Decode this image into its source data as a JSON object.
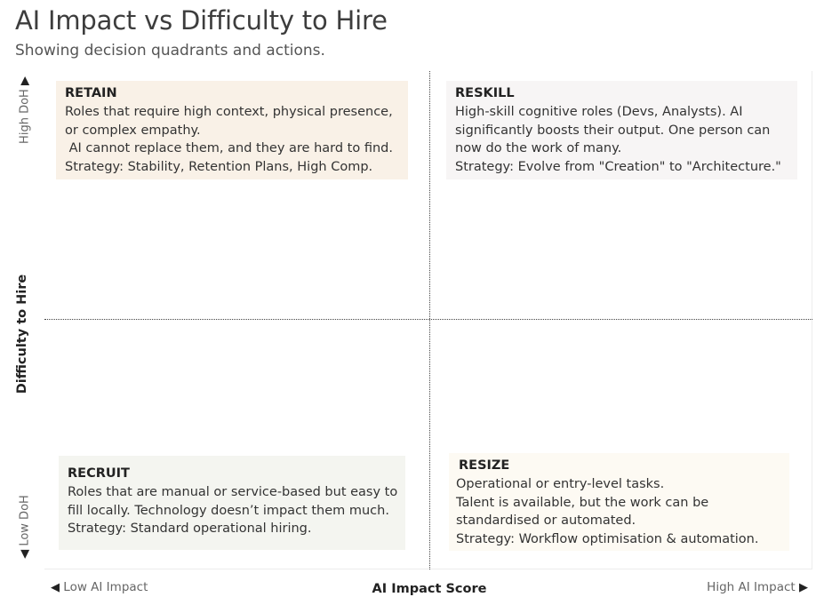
{
  "title": "AI Impact vs Difficulty to Hire",
  "subtitle": "Showing decision quadrants and actions.",
  "colors": {
    "retain_bg": "#f9f1e7",
    "reskill_bg": "#f7f5f5",
    "recruit_bg": "#f4f5f0",
    "resize_bg": "#fdfaf3",
    "divider": "#444444"
  },
  "chart_data": {
    "type": "scatter",
    "title": "AI Impact vs Difficulty to Hire",
    "subtitle": "Showing decision quadrants and actions.",
    "xlabel": "AI Impact Score",
    "ylabel": "Difficulty to Hire",
    "x_ticks": {
      "low": "Low AI Impact",
      "high": "High AI Impact"
    },
    "y_ticks": {
      "low": "Low DoH",
      "high": "High DoH"
    },
    "grid": false,
    "dividers": [
      "vertical-center",
      "horizontal-center"
    ],
    "quadrants": [
      {
        "position": "top-left",
        "name": "RETAIN",
        "lines": [
          "Roles that require high context, physical presence,",
          "or complex empathy.",
          " AI cannot replace them, and they are hard to find.",
          "Strategy: Stability, Retention Plans, High Comp."
        ]
      },
      {
        "position": "top-right",
        "name": "RESKILL",
        "lines": [
          "High-skill cognitive roles (Devs, Analysts). AI",
          "significantly boosts their output. One person can",
          "now do the work of many.",
          "Strategy: Evolve from \"Creation\" to \"Architecture.\""
        ]
      },
      {
        "position": "bottom-left",
        "name": "RECRUIT",
        "lines": [
          "Roles that are manual or service-based but easy to",
          "fill locally. Technology doesn’t impact them much.",
          "Strategy: Standard operational hiring."
        ]
      },
      {
        "position": "bottom-right",
        "name": "RESIZE",
        "lines": [
          "Operational or entry-level tasks.",
          "Talent is available, but the work can be",
          "standardised or automated.",
          "Strategy: Workflow optimisation & automation."
        ]
      }
    ]
  }
}
